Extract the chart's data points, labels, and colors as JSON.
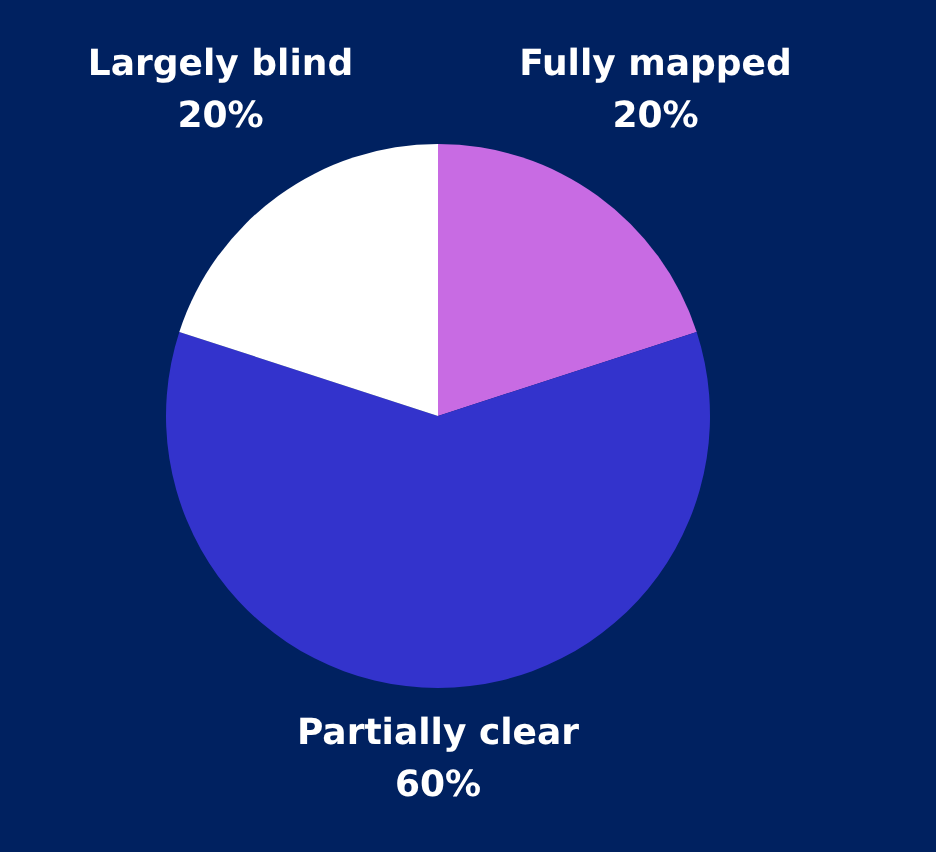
{
  "chart_data": {
    "type": "pie",
    "categories": [
      "Fully mapped",
      "Partially clear",
      "Largely blind"
    ],
    "values": [
      20,
      60,
      20
    ],
    "colors": [
      "#c86be3",
      "#3333cc",
      "#ffffff"
    ],
    "value_labels": [
      "20%",
      "60%",
      "20%"
    ]
  }
}
